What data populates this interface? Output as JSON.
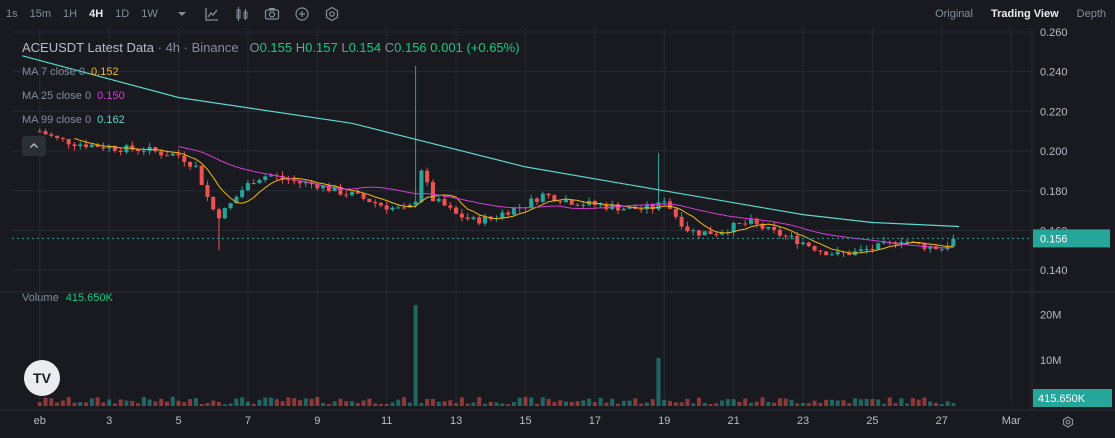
{
  "toolbar": {
    "timeframes": [
      "1s",
      "15m",
      "1H",
      "4H",
      "1D",
      "1W"
    ],
    "active_timeframe": "4H",
    "icons": [
      "chevron-down-icon",
      "line-chart-icon",
      "candlestick-icon",
      "camera-icon",
      "plus-circle-icon",
      "settings-circle-icon"
    ],
    "views": [
      "Original",
      "Trading View",
      "Depth"
    ],
    "active_view": "Trading View"
  },
  "legend": {
    "symbol": "ACEUSDT Latest Data",
    "interval": "4h",
    "exchange": "Binance",
    "open_label": "O",
    "open": "0.155",
    "high_label": "H",
    "high": "0.157",
    "low_label": "L",
    "low": "0.154",
    "close_label": "C",
    "close": "0.156",
    "change": "0.001 (+0.65%)",
    "sep1": "·",
    "sep2": "·"
  },
  "ma": [
    {
      "label": "MA 7 close 0",
      "value": "0.152",
      "color": "#f0b90b"
    },
    {
      "label": "MA 25 close 0",
      "value": "0.150",
      "color": "#d63cd6"
    },
    {
      "label": "MA 99 close 0",
      "value": "0.162",
      "color": "#5ad8cc"
    }
  ],
  "volume": {
    "label": "Volume",
    "value": "415.650K"
  },
  "colors": {
    "up": "#26a69a",
    "down": "#ef5350",
    "background": "#181a20",
    "grid": "#262a33"
  },
  "logo_text": "TV",
  "chart_data": {
    "type": "candlestick",
    "price_axis": {
      "ylim": [
        0.13,
        0.262
      ],
      "ticks": [
        "0.260",
        "0.240",
        "0.220",
        "0.200",
        "0.180",
        "0.160",
        "0.140"
      ],
      "current_price": "0.156"
    },
    "volume_axis": {
      "ticks": [
        "20M",
        "10M"
      ],
      "current_volume": "415.650K"
    },
    "x_ticks": [
      "eb",
      "3",
      "5",
      "7",
      "9",
      "11",
      "13",
      "15",
      "17",
      "19",
      "21",
      "23",
      "25",
      "27",
      "Mar"
    ],
    "x_tick_days": [
      1,
      3,
      5,
      7,
      9,
      11,
      13,
      15,
      17,
      19,
      21,
      23,
      25,
      27,
      29
    ],
    "close_series_day": [
      1.0,
      1.5,
      2.0,
      2.5,
      3.0,
      3.5,
      4.0,
      4.5,
      5.0,
      5.5,
      5.8,
      6.1,
      6.4,
      6.8,
      7.2,
      7.6,
      8.0,
      8.5,
      9.0,
      9.5,
      10.0,
      10.5,
      11.0,
      11.5,
      11.8,
      12.0,
      12.3,
      12.7,
      13.0,
      13.5,
      14.0,
      14.5,
      15.0,
      15.5,
      16.0,
      16.5,
      17.0,
      17.5,
      18.0,
      18.5,
      18.8,
      19.0,
      19.3,
      19.7,
      20.0,
      20.5,
      21.0,
      21.5,
      22.0,
      22.5,
      23.0,
      23.5,
      24.0,
      24.5,
      25.0,
      25.5,
      25.8,
      26.2,
      26.6,
      27.0,
      27.4
    ],
    "close_series_price": [
      0.21,
      0.206,
      0.204,
      0.203,
      0.202,
      0.201,
      0.201,
      0.199,
      0.198,
      0.192,
      0.178,
      0.167,
      0.171,
      0.18,
      0.186,
      0.188,
      0.186,
      0.184,
      0.183,
      0.18,
      0.178,
      0.175,
      0.172,
      0.17,
      0.173,
      0.191,
      0.176,
      0.172,
      0.168,
      0.165,
      0.166,
      0.17,
      0.173,
      0.178,
      0.176,
      0.174,
      0.173,
      0.172,
      0.171,
      0.171,
      0.172,
      0.176,
      0.168,
      0.16,
      0.159,
      0.159,
      0.162,
      0.164,
      0.16,
      0.157,
      0.154,
      0.15,
      0.148,
      0.149,
      0.151,
      0.153,
      0.156,
      0.153,
      0.152,
      0.151,
      0.156
    ],
    "notable_highs": [
      {
        "day": 11.8,
        "price": 0.243
      },
      {
        "day": 18.9,
        "price": 0.199
      }
    ],
    "ma99_day": [
      0.5,
      5,
      10,
      15,
      19,
      21,
      23,
      25,
      27.5
    ],
    "ma99_price": [
      0.248,
      0.227,
      0.214,
      0.192,
      0.18,
      0.174,
      0.168,
      0.164,
      0.162
    ],
    "volume_spikes": [
      {
        "day": 11.8,
        "value": 22
      },
      {
        "day": 18.9,
        "value": 10.5
      }
    ]
  }
}
